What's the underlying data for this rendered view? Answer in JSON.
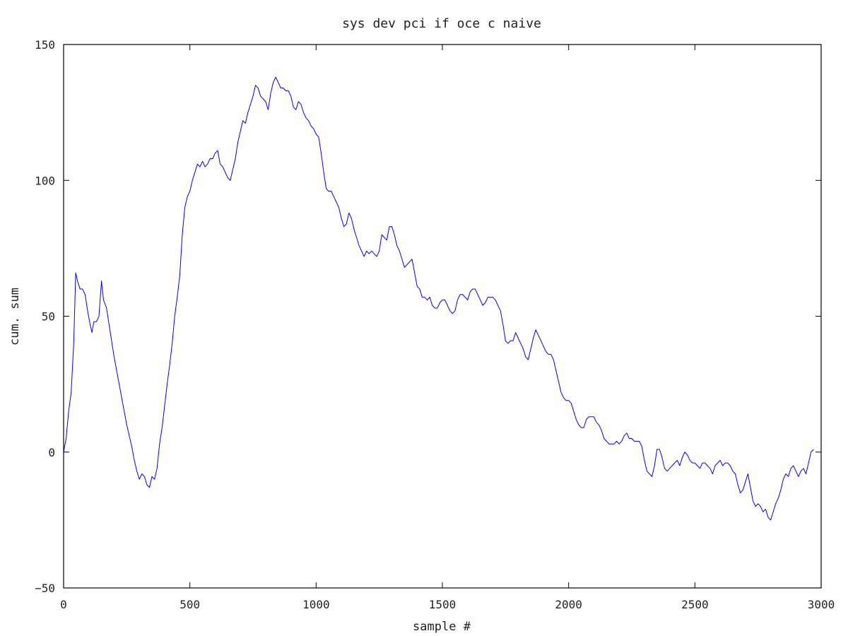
{
  "chart_data": {
    "type": "line",
    "title": "sys dev pci if oce c naive",
    "xlabel": "sample #",
    "ylabel": "cum. sum",
    "xlim": [
      0,
      3000
    ],
    "ylim": [
      -50,
      150
    ],
    "xticks": [
      0,
      500,
      1000,
      1500,
      2000,
      2500,
      3000
    ],
    "yticks": [
      -50,
      0,
      50,
      100,
      150
    ],
    "grid": false,
    "legend": "none",
    "series": [
      {
        "color": "#0000ff",
        "points": [
          [
            0,
            0
          ],
          [
            10,
            5
          ],
          [
            20,
            15
          ],
          [
            30,
            22
          ],
          [
            40,
            40
          ],
          [
            48,
            66
          ],
          [
            55,
            63
          ],
          [
            65,
            60
          ],
          [
            75,
            60
          ],
          [
            85,
            58
          ],
          [
            95,
            52
          ],
          [
            105,
            47
          ],
          [
            112,
            44
          ],
          [
            120,
            48
          ],
          [
            130,
            48
          ],
          [
            140,
            50
          ],
          [
            150,
            63
          ],
          [
            158,
            56
          ],
          [
            170,
            53
          ],
          [
            180,
            47
          ],
          [
            190,
            41
          ],
          [
            200,
            35
          ],
          [
            210,
            30
          ],
          [
            220,
            25
          ],
          [
            230,
            20
          ],
          [
            240,
            15
          ],
          [
            250,
            10
          ],
          [
            260,
            6
          ],
          [
            270,
            2
          ],
          [
            280,
            -3
          ],
          [
            290,
            -7
          ],
          [
            300,
            -10
          ],
          [
            310,
            -8
          ],
          [
            320,
            -9
          ],
          [
            330,
            -12
          ],
          [
            340,
            -13
          ],
          [
            350,
            -9
          ],
          [
            360,
            -10
          ],
          [
            370,
            -6
          ],
          [
            380,
            3
          ],
          [
            390,
            9
          ],
          [
            400,
            17
          ],
          [
            410,
            25
          ],
          [
            420,
            32
          ],
          [
            430,
            40
          ],
          [
            440,
            50
          ],
          [
            450,
            57
          ],
          [
            460,
            65
          ],
          [
            470,
            80
          ],
          [
            480,
            90
          ],
          [
            490,
            94
          ],
          [
            500,
            96
          ],
          [
            510,
            100
          ],
          [
            520,
            103
          ],
          [
            530,
            106
          ],
          [
            540,
            105
          ],
          [
            550,
            107
          ],
          [
            560,
            105
          ],
          [
            570,
            106
          ],
          [
            580,
            108
          ],
          [
            590,
            108
          ],
          [
            600,
            110
          ],
          [
            610,
            111
          ],
          [
            620,
            106
          ],
          [
            630,
            105
          ],
          [
            640,
            103
          ],
          [
            650,
            101
          ],
          [
            660,
            100
          ],
          [
            670,
            104
          ],
          [
            680,
            108
          ],
          [
            690,
            114
          ],
          [
            700,
            118
          ],
          [
            710,
            122
          ],
          [
            720,
            121
          ],
          [
            730,
            125
          ],
          [
            740,
            128
          ],
          [
            750,
            131
          ],
          [
            760,
            135
          ],
          [
            770,
            134
          ],
          [
            780,
            131
          ],
          [
            790,
            130
          ],
          [
            800,
            129
          ],
          [
            810,
            126
          ],
          [
            820,
            132
          ],
          [
            830,
            136
          ],
          [
            840,
            138
          ],
          [
            850,
            136
          ],
          [
            860,
            134
          ],
          [
            870,
            134
          ],
          [
            880,
            133
          ],
          [
            890,
            133
          ],
          [
            900,
            131
          ],
          [
            910,
            127
          ],
          [
            920,
            126
          ],
          [
            930,
            129
          ],
          [
            940,
            128
          ],
          [
            950,
            125
          ],
          [
            960,
            123
          ],
          [
            970,
            122
          ],
          [
            980,
            120
          ],
          [
            990,
            119
          ],
          [
            1000,
            117
          ],
          [
            1010,
            116
          ],
          [
            1020,
            110
          ],
          [
            1030,
            103
          ],
          [
            1040,
            97
          ],
          [
            1050,
            96
          ],
          [
            1060,
            96
          ],
          [
            1070,
            94
          ],
          [
            1080,
            92
          ],
          [
            1090,
            90
          ],
          [
            1100,
            86
          ],
          [
            1110,
            83
          ],
          [
            1120,
            84
          ],
          [
            1130,
            88
          ],
          [
            1140,
            86
          ],
          [
            1150,
            82
          ],
          [
            1160,
            79
          ],
          [
            1170,
            76
          ],
          [
            1180,
            74
          ],
          [
            1190,
            72
          ],
          [
            1200,
            74
          ],
          [
            1210,
            73
          ],
          [
            1220,
            74
          ],
          [
            1230,
            73
          ],
          [
            1240,
            72
          ],
          [
            1250,
            74
          ],
          [
            1260,
            80
          ],
          [
            1270,
            79
          ],
          [
            1280,
            78
          ],
          [
            1290,
            83
          ],
          [
            1300,
            83
          ],
          [
            1310,
            80
          ],
          [
            1320,
            76
          ],
          [
            1330,
            74
          ],
          [
            1340,
            71
          ],
          [
            1350,
            68
          ],
          [
            1360,
            69
          ],
          [
            1370,
            70
          ],
          [
            1380,
            71
          ],
          [
            1390,
            66
          ],
          [
            1400,
            61
          ],
          [
            1410,
            60
          ],
          [
            1420,
            57
          ],
          [
            1430,
            57
          ],
          [
            1440,
            56
          ],
          [
            1450,
            57
          ],
          [
            1460,
            54
          ],
          [
            1470,
            53
          ],
          [
            1480,
            53
          ],
          [
            1490,
            55
          ],
          [
            1500,
            56
          ],
          [
            1510,
            56
          ],
          [
            1520,
            54
          ],
          [
            1530,
            52
          ],
          [
            1540,
            51
          ],
          [
            1550,
            52
          ],
          [
            1560,
            56
          ],
          [
            1570,
            58
          ],
          [
            1580,
            58
          ],
          [
            1590,
            57
          ],
          [
            1600,
            56
          ],
          [
            1610,
            59
          ],
          [
            1620,
            60
          ],
          [
            1630,
            60
          ],
          [
            1640,
            58
          ],
          [
            1650,
            56
          ],
          [
            1660,
            54
          ],
          [
            1670,
            55
          ],
          [
            1680,
            57
          ],
          [
            1690,
            57
          ],
          [
            1700,
            57
          ],
          [
            1710,
            56
          ],
          [
            1720,
            54
          ],
          [
            1730,
            52
          ],
          [
            1740,
            47
          ],
          [
            1750,
            41
          ],
          [
            1760,
            40
          ],
          [
            1770,
            41
          ],
          [
            1780,
            41
          ],
          [
            1790,
            44
          ],
          [
            1800,
            42
          ],
          [
            1810,
            40
          ],
          [
            1820,
            38
          ],
          [
            1830,
            35
          ],
          [
            1840,
            34
          ],
          [
            1850,
            38
          ],
          [
            1860,
            42
          ],
          [
            1870,
            45
          ],
          [
            1880,
            43
          ],
          [
            1890,
            41
          ],
          [
            1900,
            39
          ],
          [
            1910,
            37
          ],
          [
            1920,
            36
          ],
          [
            1930,
            36
          ],
          [
            1940,
            34
          ],
          [
            1950,
            30
          ],
          [
            1960,
            26
          ],
          [
            1970,
            22
          ],
          [
            1980,
            20
          ],
          [
            1990,
            19
          ],
          [
            2000,
            19
          ],
          [
            2010,
            18
          ],
          [
            2020,
            15
          ],
          [
            2030,
            12
          ],
          [
            2040,
            10
          ],
          [
            2050,
            9
          ],
          [
            2060,
            9
          ],
          [
            2070,
            12
          ],
          [
            2080,
            13
          ],
          [
            2090,
            13
          ],
          [
            2100,
            13
          ],
          [
            2110,
            11
          ],
          [
            2120,
            10
          ],
          [
            2130,
            8
          ],
          [
            2140,
            5
          ],
          [
            2150,
            4
          ],
          [
            2160,
            3
          ],
          [
            2170,
            3
          ],
          [
            2180,
            3
          ],
          [
            2190,
            4
          ],
          [
            2200,
            3
          ],
          [
            2210,
            4
          ],
          [
            2220,
            6
          ],
          [
            2230,
            7
          ],
          [
            2240,
            5
          ],
          [
            2250,
            5
          ],
          [
            2260,
            4
          ],
          [
            2270,
            4
          ],
          [
            2280,
            4
          ],
          [
            2290,
            2
          ],
          [
            2300,
            -3
          ],
          [
            2310,
            -7
          ],
          [
            2320,
            -8
          ],
          [
            2330,
            -9
          ],
          [
            2340,
            -5
          ],
          [
            2350,
            1
          ],
          [
            2360,
            1
          ],
          [
            2370,
            -2
          ],
          [
            2380,
            -6
          ],
          [
            2390,
            -7
          ],
          [
            2400,
            -6
          ],
          [
            2410,
            -5
          ],
          [
            2420,
            -4
          ],
          [
            2430,
            -3
          ],
          [
            2440,
            -5
          ],
          [
            2450,
            -2
          ],
          [
            2460,
            0
          ],
          [
            2470,
            -1
          ],
          [
            2480,
            -3
          ],
          [
            2490,
            -4
          ],
          [
            2500,
            -4
          ],
          [
            2510,
            -5
          ],
          [
            2520,
            -6
          ],
          [
            2530,
            -4
          ],
          [
            2540,
            -4
          ],
          [
            2550,
            -5
          ],
          [
            2560,
            -6
          ],
          [
            2570,
            -8
          ],
          [
            2580,
            -5
          ],
          [
            2590,
            -4
          ],
          [
            2600,
            -3
          ],
          [
            2610,
            -5
          ],
          [
            2620,
            -4
          ],
          [
            2630,
            -4
          ],
          [
            2640,
            -5
          ],
          [
            2650,
            -7
          ],
          [
            2660,
            -8
          ],
          [
            2670,
            -12
          ],
          [
            2680,
            -15
          ],
          [
            2690,
            -14
          ],
          [
            2700,
            -11
          ],
          [
            2710,
            -8
          ],
          [
            2720,
            -13
          ],
          [
            2730,
            -18
          ],
          [
            2740,
            -20
          ],
          [
            2750,
            -19
          ],
          [
            2760,
            -20
          ],
          [
            2770,
            -22
          ],
          [
            2780,
            -21
          ],
          [
            2790,
            -24
          ],
          [
            2800,
            -25
          ],
          [
            2810,
            -22
          ],
          [
            2820,
            -19
          ],
          [
            2830,
            -17
          ],
          [
            2840,
            -14
          ],
          [
            2850,
            -10
          ],
          [
            2860,
            -8
          ],
          [
            2870,
            -9
          ],
          [
            2880,
            -6
          ],
          [
            2890,
            -5
          ],
          [
            2900,
            -7
          ],
          [
            2910,
            -9
          ],
          [
            2920,
            -7
          ],
          [
            2930,
            -6
          ],
          [
            2940,
            -8
          ],
          [
            2950,
            -4
          ],
          [
            2960,
            0
          ],
          [
            2970,
            1
          ]
        ]
      }
    ]
  }
}
